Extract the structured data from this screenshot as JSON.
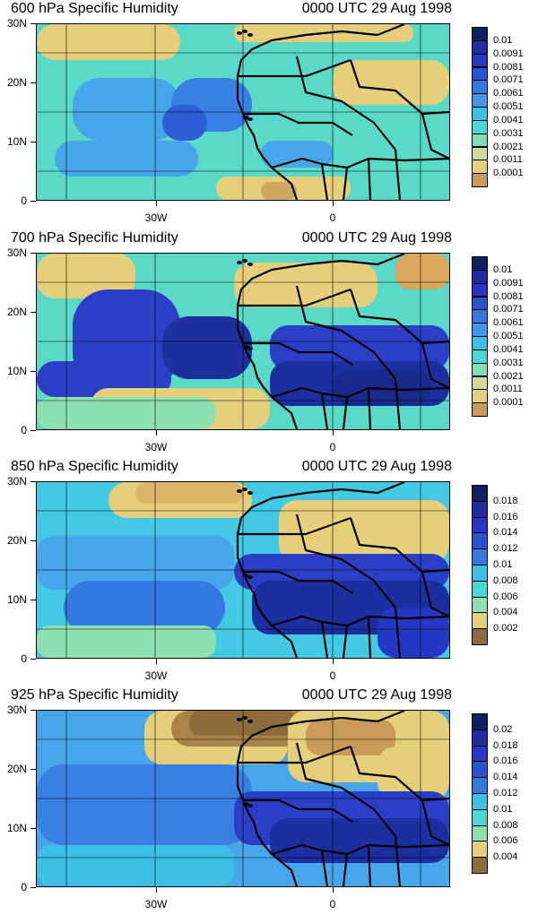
{
  "panels": [
    {
      "title": "600 hPa Specific Humidity",
      "time": "0000 UTC 29 Aug 1998",
      "y_ticks": [
        "30N",
        "20N",
        "10N",
        "0"
      ],
      "x_ticks": [
        "30W",
        "0"
      ],
      "legend_labels": [
        "0.01",
        "0.0091",
        "0.0081",
        "0.0071",
        "0.0061",
        "0.0051",
        "0.0041",
        "0.0031",
        "0.0021",
        "0.0011",
        "0.0001"
      ]
    },
    {
      "title": "700 hPa Specific Humidity",
      "time": "0000 UTC 29 Aug 1998",
      "y_ticks": [
        "30N",
        "20N",
        "10N",
        "0"
      ],
      "x_ticks": [
        "30W",
        "0"
      ],
      "legend_labels": [
        "0.01",
        "0.0091",
        "0.0081",
        "0.0071",
        "0.0061",
        "0.0051",
        "0.0041",
        "0.0031",
        "0.0021",
        "0.0011",
        "0.0001"
      ]
    },
    {
      "title": "850 hPa Specific Humidity",
      "time": "0000 UTC 29 Aug 1998",
      "y_ticks": [
        "30N",
        "20N",
        "10N",
        "0"
      ],
      "x_ticks": [
        "30W",
        "0"
      ],
      "legend_labels": [
        "0.018",
        "0.016",
        "0.014",
        "0.012",
        "0.01",
        "0.008",
        "0.006",
        "0.004",
        "0.002"
      ]
    },
    {
      "title": "925 hPa Specific Humidity",
      "time": "0000 UTC 29 Aug 1998",
      "y_ticks": [
        "30N",
        "20N",
        "10N",
        "0"
      ],
      "x_ticks": [
        "30W",
        "0"
      ],
      "legend_labels": [
        "0.02",
        "0.018",
        "0.016",
        "0.014",
        "0.012",
        "0.01",
        "0.008",
        "0.006",
        "0.004"
      ]
    }
  ],
  "colors": {
    "moist_high": "#1a2b6e",
    "moist": "#2f45b8",
    "mid": "#4fb3e3",
    "cyan": "#49d6d6",
    "dry": "#e6c77a",
    "very_dry": "#8e6b3a",
    "coast": "#000000"
  }
}
